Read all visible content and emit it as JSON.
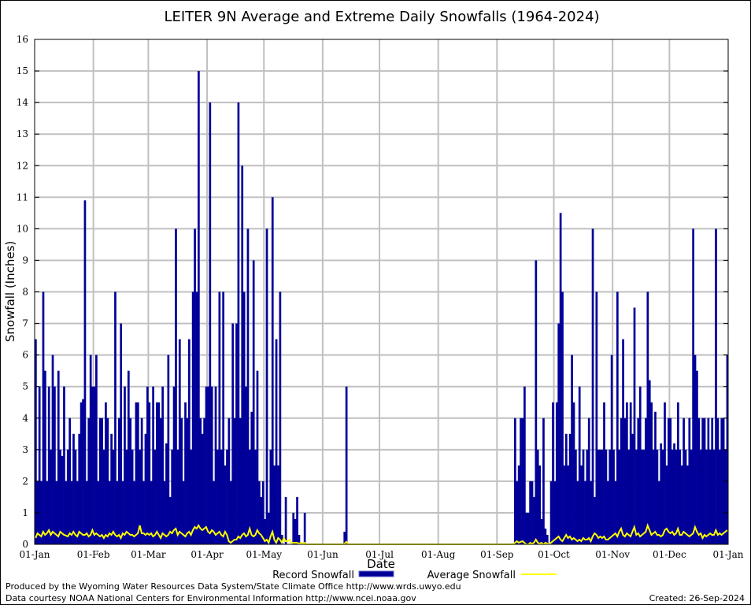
{
  "chart_data": {
    "type": "bar",
    "title": "LEITER 9N Average and Extreme Daily Snowfalls (1964-2024)",
    "xlabel": "Date",
    "ylabel": "Snowfall (Inches)",
    "ylim": [
      0,
      16
    ],
    "yticks": [
      "0",
      "1",
      "2",
      "3",
      "4",
      "5",
      "6",
      "7",
      "8",
      "9",
      "10",
      "11",
      "12",
      "13",
      "14",
      "15",
      "16"
    ],
    "xticks": [
      "01-Jan",
      "01-Feb",
      "01-Mar",
      "01-Apr",
      "01-May",
      "01-Jun",
      "01-Jul",
      "01-Aug",
      "01-Sep",
      "01-Oct",
      "01-Nov",
      "01-Dec",
      "01-Jan"
    ],
    "month_lengths": [
      31,
      29,
      31,
      30,
      31,
      30,
      31,
      31,
      30,
      31,
      30,
      31
    ],
    "grid": true,
    "legend_position": "bottom-center",
    "series": [
      {
        "name": "Record Snowfall",
        "type": "bar",
        "color": "#000099",
        "values_by_month": [
          [
            6.5,
            2,
            5,
            2,
            8,
            5.5,
            2,
            5,
            3,
            6,
            5,
            2,
            5.5,
            3,
            2.8,
            5,
            2,
            3,
            4,
            2,
            3.5,
            3,
            2,
            3.5,
            4.5,
            4.6,
            10.9,
            2,
            4,
            6,
            5
          ],
          [
            5,
            6,
            2,
            4,
            4,
            3,
            4.5,
            4,
            2,
            3.5,
            3,
            8,
            2,
            4,
            7,
            2,
            5,
            3,
            5.5,
            4,
            3,
            2,
            4.5,
            4.5,
            3,
            4,
            2,
            3.5,
            5
          ],
          [
            4.5,
            2,
            5,
            3,
            4.5,
            4.5,
            4,
            5,
            2,
            3.2,
            6,
            1.5,
            3,
            5,
            10,
            3,
            6.5,
            4,
            2,
            4.5,
            4,
            6.5,
            3,
            8,
            10,
            8,
            15,
            4,
            3.5,
            4,
            5
          ],
          [
            5,
            14,
            5,
            2,
            5,
            3,
            8,
            3,
            8,
            2.5,
            3,
            4,
            2,
            7,
            4,
            7,
            14,
            4,
            12,
            8,
            5,
            10,
            3,
            4.2,
            9,
            3,
            5.5,
            2,
            1.5,
            2
          ],
          [
            0.8,
            10,
            1,
            3,
            11,
            2.5,
            6.5,
            2.5,
            8,
            0.3,
            0,
            1.5,
            0,
            0,
            0,
            1,
            0.8,
            1.5,
            0.3,
            0,
            0,
            1,
            0,
            0,
            0,
            0,
            0,
            0,
            0,
            0,
            0
          ],
          [
            0,
            0,
            0,
            0,
            0,
            0,
            0,
            0,
            0,
            0,
            0,
            0.4,
            5,
            0,
            0,
            0,
            0,
            0,
            0,
            0,
            0,
            0,
            0,
            0,
            0,
            0,
            0,
            0,
            0,
            0
          ],
          [
            0,
            0,
            0,
            0,
            0,
            0,
            0,
            0,
            0,
            0,
            0,
            0,
            0,
            0,
            0,
            0,
            0,
            0,
            0,
            0,
            0,
            0,
            0,
            0,
            0,
            0,
            0,
            0,
            0,
            0,
            0
          ],
          [
            0,
            0,
            0,
            0,
            0,
            0,
            0,
            0,
            0,
            0,
            0,
            0,
            0,
            0,
            0,
            0,
            0,
            0,
            0,
            0,
            0,
            0,
            0,
            0,
            0,
            0,
            0,
            0,
            0,
            0,
            0
          ],
          [
            0,
            0,
            0,
            0,
            0,
            0,
            0,
            0,
            0,
            4,
            2,
            2.5,
            4,
            4,
            5,
            1,
            1,
            2,
            2,
            1.5,
            9,
            3,
            2.5,
            0.8,
            4,
            0.5,
            0.3,
            0,
            2,
            4.5
          ],
          [
            2,
            4.5,
            7,
            10.5,
            8,
            2.5,
            3.5,
            2.5,
            3.5,
            6,
            4.5,
            3,
            2,
            5,
            2.5,
            3,
            2,
            3,
            4,
            2,
            10,
            1.5,
            8,
            3,
            3,
            3,
            4.5,
            3,
            2,
            3,
            6
          ],
          [
            3,
            2,
            8,
            3,
            4,
            6.5,
            4,
            4.5,
            3,
            4.5,
            3.5,
            7.5,
            3,
            4,
            5,
            3,
            3,
            4,
            8,
            5.2,
            4.5,
            3,
            4.2,
            3,
            2,
            3.2,
            3,
            4.5,
            2.5,
            4
          ],
          [
            4,
            3,
            3.2,
            3,
            4.5,
            3,
            2.5,
            4,
            3,
            2.5,
            4,
            3,
            10,
            6,
            5.5,
            4,
            3,
            4,
            4,
            3,
            4,
            3,
            4,
            3,
            10,
            4,
            3,
            4,
            4,
            3,
            6
          ]
        ]
      },
      {
        "name": "Average Snowfall",
        "type": "line",
        "color": "#ffff00",
        "values_by_month": [
          [
            0.2,
            0.35,
            0.3,
            0.25,
            0.4,
            0.3,
            0.35,
            0.45,
            0.3,
            0.4,
            0.35,
            0.3,
            0.25,
            0.4,
            0.35,
            0.3,
            0.28,
            0.25,
            0.35,
            0.3,
            0.4,
            0.3,
            0.25,
            0.4,
            0.35,
            0.3,
            0.3,
            0.35,
            0.25,
            0.3,
            0.45
          ],
          [
            0.3,
            0.35,
            0.3,
            0.25,
            0.3,
            0.2,
            0.3,
            0.25,
            0.35,
            0.3,
            0.4,
            0.3,
            0.25,
            0.3,
            0.2,
            0.35,
            0.3,
            0.4,
            0.35,
            0.3,
            0.3,
            0.25,
            0.3,
            0.35,
            0.6,
            0.35,
            0.35,
            0.3,
            0.35
          ],
          [
            0.3,
            0.35,
            0.25,
            0.3,
            0.4,
            0.3,
            0.2,
            0.35,
            0.3,
            0.25,
            0.3,
            0.4,
            0.35,
            0.45,
            0.5,
            0.3,
            0.4,
            0.35,
            0.3,
            0.25,
            0.35,
            0.4,
            0.3,
            0.45,
            0.55,
            0.5,
            0.6,
            0.5,
            0.45,
            0.5,
            0.55
          ],
          [
            0.4,
            0.35,
            0.45,
            0.4,
            0.3,
            0.35,
            0.4,
            0.3,
            0.25,
            0.4,
            0.3,
            0.1,
            0.05,
            0.1,
            0.15,
            0.15,
            0.25,
            0.2,
            0.3,
            0.35,
            0.25,
            0.3,
            0.5,
            0.3,
            0.25,
            0.3,
            0.45,
            0.35,
            0.3,
            0.2
          ],
          [
            0.1,
            0.15,
            0.05,
            0.25,
            0.4,
            0.15,
            0.05,
            0.2,
            0.15,
            0.05,
            0.2,
            0.1,
            0.1,
            0.15,
            0.05,
            0.05,
            0.05,
            0.05,
            0.02,
            0.05,
            0.02,
            0.05,
            0,
            0,
            0,
            0,
            0,
            0,
            0,
            0,
            0
          ],
          [
            0,
            0,
            0,
            0,
            0,
            0,
            0,
            0,
            0,
            0,
            0,
            0.02,
            0.08,
            0,
            0,
            0,
            0,
            0,
            0,
            0,
            0,
            0,
            0,
            0,
            0,
            0,
            0,
            0,
            0,
            0
          ],
          [
            0,
            0,
            0,
            0,
            0,
            0,
            0,
            0,
            0,
            0,
            0,
            0,
            0,
            0,
            0,
            0,
            0,
            0,
            0,
            0,
            0,
            0,
            0,
            0,
            0,
            0,
            0,
            0,
            0,
            0,
            0
          ],
          [
            0,
            0,
            0,
            0,
            0,
            0,
            0,
            0,
            0,
            0,
            0,
            0,
            0,
            0,
            0,
            0,
            0,
            0,
            0,
            0,
            0,
            0,
            0,
            0,
            0,
            0,
            0,
            0,
            0,
            0,
            0
          ],
          [
            0,
            0,
            0,
            0,
            0,
            0,
            0,
            0,
            0,
            0.05,
            0.1,
            0.05,
            0.08,
            0.1,
            0.05,
            0,
            0,
            0.05,
            0.02,
            0.05,
            0.15,
            0.05,
            0.02,
            0.05,
            0,
            0.05,
            0.03,
            0,
            0.05,
            0.1
          ],
          [
            0.15,
            0.2,
            0.25,
            0.15,
            0.1,
            0.2,
            0.3,
            0.2,
            0.25,
            0.15,
            0.2,
            0.15,
            0.1,
            0.15,
            0.1,
            0.2,
            0.15,
            0.15,
            0.2,
            0.1,
            0.25,
            0.35,
            0.3,
            0.2,
            0.25,
            0.2,
            0.25,
            0.15,
            0.15,
            0.2,
            0.25
          ],
          [
            0.3,
            0.35,
            0.25,
            0.4,
            0.5,
            0.3,
            0.25,
            0.35,
            0.3,
            0.25,
            0.4,
            0.55,
            0.3,
            0.35,
            0.25,
            0.3,
            0.35,
            0.4,
            0.6,
            0.45,
            0.3,
            0.35,
            0.4,
            0.3,
            0.3,
            0.25,
            0.3,
            0.45,
            0.5,
            0.4
          ],
          [
            0.35,
            0.4,
            0.3,
            0.35,
            0.5,
            0.3,
            0.3,
            0.4,
            0.35,
            0.3,
            0.25,
            0.3,
            0.35,
            0.55,
            0.4,
            0.3,
            0.35,
            0.2,
            0.3,
            0.25,
            0.3,
            0.35,
            0.3,
            0.3,
            0.45,
            0.3,
            0.35,
            0.3,
            0.35,
            0.4,
            0.45
          ]
        ]
      }
    ]
  },
  "footer": {
    "produced_by": "Produced by the Wyoming Water Resources Data System/State Climate Office http://www.wrds.uwyo.edu",
    "data_courtesy": "Data courtesy NOAA National Centers for Environmental Information http://www.ncei.noaa.gov",
    "created": "Created: 26-Sep-2024"
  }
}
